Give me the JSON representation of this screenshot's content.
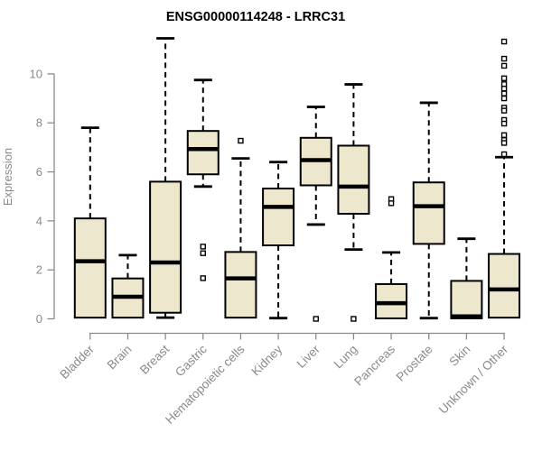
{
  "chart_data": {
    "type": "box",
    "title": "ENSG00000114248 - LRRC31",
    "ylabel": "Expression",
    "xlabel": "",
    "yticks": [
      0,
      2,
      4,
      6,
      8,
      10
    ],
    "ylim": [
      0,
      11.5
    ],
    "grid": false,
    "legend": null,
    "colors": {
      "box_fill": "#EDE7CD",
      "box_stroke": "#000000",
      "median": "#000000",
      "whisker": "#000000",
      "outlier_stroke": "#000000",
      "axis": "#8A8A8A",
      "title": "#000000"
    },
    "categories": [
      {
        "label": "Bladder",
        "low": 0.05,
        "q1": 0.05,
        "median": 2.35,
        "q3": 4.1,
        "high": 7.8,
        "outliers": []
      },
      {
        "label": "Brain",
        "low": 0.05,
        "q1": 0.05,
        "median": 0.9,
        "q3": 1.65,
        "high": 2.6,
        "outliers": []
      },
      {
        "label": "Breast",
        "low": 0.05,
        "q1": 0.25,
        "median": 2.3,
        "q3": 5.6,
        "high": 11.45,
        "outliers": []
      },
      {
        "label": "Gastric",
        "low": 5.4,
        "q1": 5.9,
        "median": 6.93,
        "q3": 7.67,
        "high": 9.75,
        "outliers": [
          2.95,
          2.68,
          1.66
        ]
      },
      {
        "label": "Hematopoietic cells",
        "low": 0.05,
        "q1": 0.05,
        "median": 1.65,
        "q3": 2.73,
        "high": 6.55,
        "outliers": [
          7.27
        ]
      },
      {
        "label": "Kidney",
        "low": 0.03,
        "q1": 3.0,
        "median": 4.57,
        "q3": 5.32,
        "high": 6.4,
        "outliers": []
      },
      {
        "label": "Liver",
        "low": 3.85,
        "q1": 5.45,
        "median": 6.48,
        "q3": 7.39,
        "high": 8.65,
        "outliers": [
          0.0
        ]
      },
      {
        "label": "Lung",
        "low": 2.83,
        "q1": 4.29,
        "median": 5.4,
        "q3": 7.07,
        "high": 9.57,
        "outliers": [
          0.0
        ]
      },
      {
        "label": "Pancreas",
        "low": 0.02,
        "q1": 0.02,
        "median": 0.64,
        "q3": 1.42,
        "high": 2.71,
        "outliers": [
          4.89,
          4.72
        ]
      },
      {
        "label": "Prostate",
        "low": 0.03,
        "q1": 3.06,
        "median": 4.6,
        "q3": 5.57,
        "high": 8.82,
        "outliers": []
      },
      {
        "label": "Skin",
        "low": 0.02,
        "q1": 0.02,
        "median": 0.1,
        "q3": 1.55,
        "high": 3.27,
        "outliers": []
      },
      {
        "label": "Unknown / Other",
        "low": 0.05,
        "q1": 0.05,
        "median": 1.2,
        "q3": 2.65,
        "high": 6.6,
        "outliers": [
          11.32,
          10.62,
          10.33,
          9.82,
          9.58,
          9.4,
          9.2,
          9.0,
          8.62,
          8.5,
          8.12,
          7.97,
          7.5,
          7.3,
          7.18,
          6.72
        ]
      }
    ]
  }
}
